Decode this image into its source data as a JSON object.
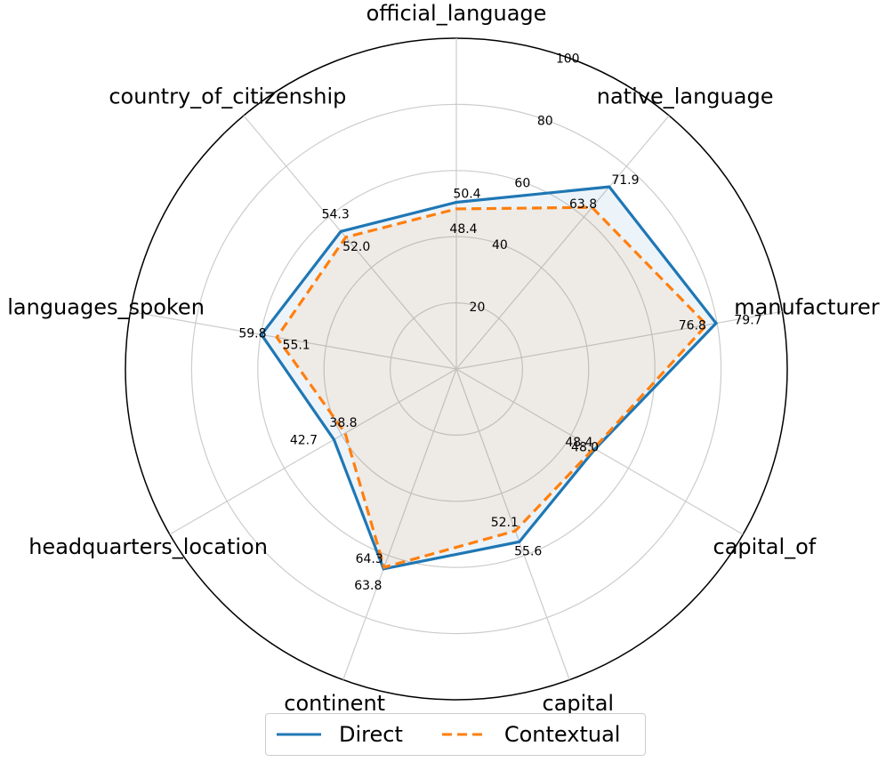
{
  "chart_data": {
    "type": "radar",
    "categories": [
      "official_language",
      "native_language",
      "manufacturer",
      "capital_of",
      "capital",
      "continent",
      "headquarters_location",
      "languages_spoken",
      "country_of_citizenship"
    ],
    "series": [
      {
        "name": "Direct",
        "values": [
          50.4,
          71.9,
          79.7,
          48.4,
          55.6,
          64.3,
          42.7,
          59.8,
          54.3
        ],
        "color": "#1f77b4",
        "line_style": "solid"
      },
      {
        "name": "Contextual",
        "values": [
          48.4,
          63.8,
          76.8,
          48.0,
          52.1,
          63.8,
          38.8,
          55.1,
          52.0
        ],
        "color": "#ff7f0e",
        "line_style": "dashed"
      }
    ],
    "radial_ticks": [
      20,
      40,
      60,
      80,
      100
    ],
    "r_range": [
      0,
      100
    ],
    "grid": true,
    "legend_position": "bottom-center",
    "data_labels": {
      "Direct": [
        "50.4",
        "71.9",
        "79.7",
        "48.4",
        "55.6",
        "64.3",
        "42.7",
        "59.8",
        "54.3"
      ],
      "Contextual": [
        "48.4",
        "63.8",
        "76.8",
        "48.0",
        "52.1",
        "63.8",
        "38.8",
        "55.1",
        "52.0"
      ]
    }
  }
}
